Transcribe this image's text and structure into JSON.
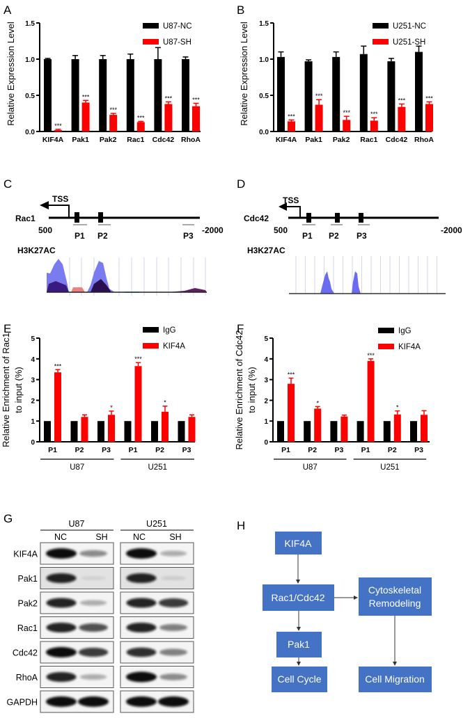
{
  "colors": {
    "control": "#000000",
    "treated": "#ff0000",
    "flow_box": "#4472c4"
  },
  "panel_labels": {
    "a": "A",
    "b": "B",
    "c": "C",
    "d": "D",
    "e": "E",
    "f": "F",
    "g": "G",
    "h": "H"
  },
  "chart_data": [
    {
      "panel": "A",
      "type": "bar",
      "ylabel": "Relative Expression Level",
      "ylim": [
        0,
        1.5
      ],
      "yticks": [
        "0.0",
        "0.5",
        "1.0",
        "1.5"
      ],
      "categories": [
        "KIF4A",
        "Pak1",
        "Pak2",
        "Rac1",
        "Cdc42",
        "RhoA"
      ],
      "legend": "top-right",
      "series": [
        {
          "name": "U87-NC",
          "values": [
            1.0,
            1.0,
            1.0,
            1.0,
            1.0,
            1.0
          ],
          "errors": [
            0.01,
            0.05,
            0.05,
            0.07,
            0.16,
            0.03
          ]
        },
        {
          "name": "U87-SH",
          "values": [
            0.02,
            0.4,
            0.23,
            0.13,
            0.38,
            0.35
          ],
          "errors": [
            0.01,
            0.03,
            0.02,
            0.01,
            0.03,
            0.04
          ],
          "significance": [
            "***",
            "***",
            "***",
            "***",
            "***",
            "***"
          ]
        }
      ]
    },
    {
      "panel": "B",
      "type": "bar",
      "ylabel": "Relative Expression Level",
      "ylim": [
        0,
        1.5
      ],
      "yticks": [
        "0.0",
        "0.5",
        "1.0",
        "1.5"
      ],
      "categories": [
        "KIF4A",
        "Pak1",
        "Pak2",
        "Rac1",
        "Cdc42",
        "RhoA"
      ],
      "legend": "top-right",
      "series": [
        {
          "name": "U251-NC",
          "values": [
            1.03,
            0.97,
            1.03,
            1.07,
            0.97,
            1.1
          ],
          "errors": [
            0.07,
            0.02,
            0.07,
            0.11,
            0.04,
            0.08
          ]
        },
        {
          "name": "U251-SH",
          "values": [
            0.14,
            0.37,
            0.16,
            0.15,
            0.34,
            0.38
          ],
          "errors": [
            0.02,
            0.07,
            0.05,
            0.04,
            0.04,
            0.03
          ],
          "significance": [
            "***",
            "***",
            "***",
            "***",
            "***",
            "***"
          ]
        }
      ]
    },
    {
      "panel": "E",
      "type": "bar",
      "ylabel": [
        "Relative Enrichment of Rac1",
        "to input (%)"
      ],
      "ylim": [
        0,
        5
      ],
      "yticks": [
        "0",
        "1",
        "2",
        "3",
        "4",
        "5"
      ],
      "categories": [
        "P1",
        "P2",
        "P3",
        "P1",
        "P2",
        "P3"
      ],
      "groups": [
        "U87",
        "U251"
      ],
      "legend": "top-right",
      "series": [
        {
          "name": "IgG",
          "values": [
            1,
            1,
            1,
            1,
            1,
            1
          ],
          "errors": [
            0,
            0,
            0,
            0,
            0,
            0
          ]
        },
        {
          "name": "KIF4A",
          "values": [
            3.35,
            1.2,
            1.3,
            3.65,
            1.45,
            1.2
          ],
          "errors": [
            0.13,
            0.1,
            0.18,
            0.17,
            0.27,
            0.1
          ],
          "significance": [
            "***",
            "",
            "*",
            "***",
            "*",
            ""
          ]
        }
      ]
    },
    {
      "panel": "F",
      "type": "bar",
      "ylabel": [
        "Relative Enrichment of Cdc42",
        "to input (%)"
      ],
      "ylim": [
        0,
        5
      ],
      "yticks": [
        "0",
        "1",
        "2",
        "3",
        "4",
        "5"
      ],
      "categories": [
        "P1",
        "P2",
        "P3",
        "P1",
        "P2",
        "P3"
      ],
      "groups": [
        "U87",
        "U251"
      ],
      "legend": "top-right",
      "series": [
        {
          "name": "IgG",
          "values": [
            1,
            1,
            1,
            1,
            1,
            1
          ],
          "errors": [
            0,
            0,
            0,
            0,
            0,
            0
          ]
        },
        {
          "name": "KIF4A",
          "values": [
            2.8,
            1.6,
            1.22,
            3.9,
            1.32,
            1.3
          ],
          "errors": [
            0.27,
            0.1,
            0.07,
            0.1,
            0.17,
            0.2
          ],
          "significance": [
            "***",
            "*",
            "",
            "***",
            "*",
            ""
          ]
        }
      ]
    }
  ],
  "promoter_c": {
    "gene": "Rac1",
    "tss": "TSS",
    "left": "500",
    "right": "-2000",
    "primers": [
      "P1",
      "P2",
      "P3"
    ],
    "track": "H3K27AC"
  },
  "promoter_d": {
    "gene": "Cdc42",
    "tss": "TSS",
    "left": "500",
    "right": "-2000",
    "primers": [
      "P1",
      "P2",
      "P3"
    ],
    "track": "H3K27AC"
  },
  "western": {
    "cells": [
      "U87",
      "U251"
    ],
    "lanes": [
      "NC",
      "SH"
    ],
    "proteins": [
      "KIF4A",
      "Pak1",
      "Pak2",
      "Rac1",
      "Cdc42",
      "RhoA",
      "GAPDH"
    ],
    "band_intensity": {
      "U87": [
        [
          1.0,
          0.45
        ],
        [
          0.9,
          0.05
        ],
        [
          0.9,
          0.3
        ],
        [
          0.9,
          0.7
        ],
        [
          1.0,
          0.8
        ],
        [
          0.9,
          0.3
        ],
        [
          1.0,
          1.0
        ]
      ],
      "U251": [
        [
          1.0,
          0.3
        ],
        [
          0.9,
          0.1
        ],
        [
          0.9,
          0.8
        ],
        [
          0.9,
          0.5
        ],
        [
          0.85,
          0.5
        ],
        [
          1.0,
          0.45
        ],
        [
          1.0,
          1.0
        ]
      ]
    }
  },
  "flowchart": {
    "nodes": [
      "KIF4A",
      "Rac1/Cdc42",
      "Cytoskeletal",
      "Remodeling",
      "Pak1",
      "Cell Cycle",
      "Cell Migration"
    ]
  }
}
